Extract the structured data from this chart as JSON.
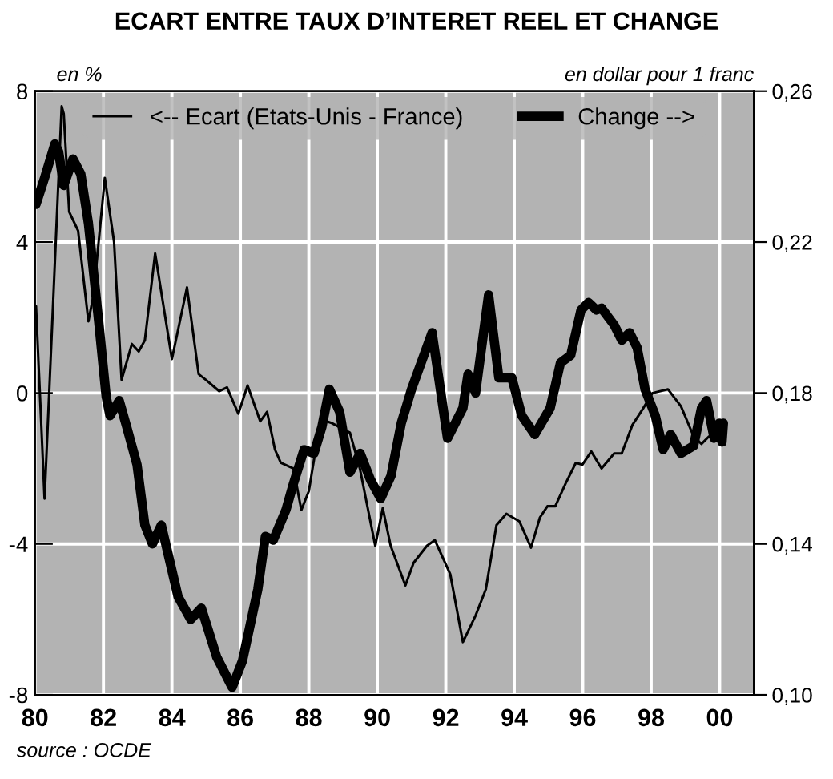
{
  "chart_data": {
    "type": "line",
    "title": "ECART ENTRE TAUX D’INTERET REEL ET CHANGE",
    "ylabel": "en %",
    "y2label": "en dollar pour 1 franc",
    "annotations": [
      "source : OCDE"
    ],
    "xlim": [
      1980,
      2001
    ],
    "xticks": [
      {
        "value": 1980,
        "label": "80"
      },
      {
        "value": 1982,
        "label": "82"
      },
      {
        "value": 1984,
        "label": "84"
      },
      {
        "value": 1986,
        "label": "86"
      },
      {
        "value": 1988,
        "label": "88"
      },
      {
        "value": 1990,
        "label": "90"
      },
      {
        "value": 1992,
        "label": "92"
      },
      {
        "value": 1994,
        "label": "94"
      },
      {
        "value": 1996,
        "label": "96"
      },
      {
        "value": 1998,
        "label": "98"
      },
      {
        "value": 2000,
        "label": "00"
      }
    ],
    "ylim": [
      -8,
      8
    ],
    "yticks": [
      -8,
      -4,
      0,
      4,
      8
    ],
    "y2lim": [
      0.1,
      0.26
    ],
    "y2ticks": [
      {
        "value": 0.1,
        "label": "0,10"
      },
      {
        "value": 0.14,
        "label": "0,14"
      },
      {
        "value": 0.18,
        "label": "0,18"
      },
      {
        "value": 0.22,
        "label": "0,22"
      },
      {
        "value": 0.26,
        "label": "0,26"
      }
    ],
    "grid": true,
    "legend": "top",
    "marker": "none",
    "line_style": "solid",
    "series": [
      {
        "name": "<-- Ecart (Etats-Unis - France)",
        "color": "#000000",
        "x": [
          1980.03,
          1980.28,
          1980.78,
          1980.84,
          1981.0,
          1981.26,
          1981.56,
          1981.71,
          1982.04,
          1982.31,
          1982.53,
          1982.83,
          1983.03,
          1983.21,
          1983.51,
          1984.0,
          1984.44,
          1984.78,
          1984.99,
          1985.38,
          1985.61,
          1985.94,
          1986.21,
          1986.58,
          1986.78,
          1987.01,
          1987.18,
          1987.55,
          1987.78,
          1988.0,
          1988.18,
          1988.36,
          1988.68,
          1989.2,
          1989.49,
          1989.94,
          1990.16,
          1990.39,
          1990.82,
          1991.06,
          1991.45,
          1991.68,
          1992.13,
          1992.5,
          1992.87,
          1993.17,
          1993.48,
          1993.77,
          1994.15,
          1994.49,
          1994.75,
          1994.97,
          1995.2,
          1995.5,
          1995.8,
          1995.99,
          1996.25,
          1996.55,
          1996.92,
          1997.14,
          1997.45,
          1997.75,
          1998.04,
          1998.49,
          1998.87,
          1999.24,
          1999.47,
          1999.69
        ],
        "values": [
          2.3,
          -2.8,
          7.6,
          7.4,
          4.8,
          4.3,
          1.9,
          2.6,
          5.7,
          4.0,
          0.35,
          1.3,
          1.1,
          1.4,
          3.7,
          0.9,
          2.8,
          0.5,
          0.35,
          0.05,
          0.15,
          -0.55,
          0.2,
          -0.75,
          -0.5,
          -1.5,
          -1.85,
          -2.0,
          -3.1,
          -2.6,
          -1.6,
          -0.7,
          -0.8,
          -1.05,
          -2.0,
          -4.05,
          -3.05,
          -4.05,
          -5.1,
          -4.5,
          -4.05,
          -3.9,
          -4.8,
          -6.6,
          -5.9,
          -5.2,
          -3.5,
          -3.2,
          -3.4,
          -4.1,
          -3.3,
          -3.0,
          -3.0,
          -2.4,
          -1.85,
          -1.9,
          -1.55,
          -2.0,
          -1.6,
          -1.6,
          -0.85,
          -0.43,
          0.0,
          0.1,
          -0.35,
          -1.15,
          -1.35,
          -1.15
        ]
      },
      {
        "name": "Change -->",
        "color": "#000000",
        "axis": "y2",
        "x": [
          1980.03,
          1980.28,
          1980.58,
          1980.69,
          1980.84,
          1981.11,
          1981.34,
          1981.56,
          1981.86,
          1982.08,
          1982.19,
          1982.46,
          1982.68,
          1982.98,
          1983.21,
          1983.43,
          1983.69,
          1984.18,
          1984.55,
          1984.86,
          1985.31,
          1985.76,
          1986.06,
          1986.51,
          1986.73,
          1986.96,
          1987.33,
          1987.55,
          1987.86,
          1988.15,
          1988.38,
          1988.6,
          1988.9,
          1989.2,
          1989.5,
          1989.8,
          1990.1,
          1990.4,
          1990.7,
          1991.0,
          1991.6,
          1992.05,
          1992.5,
          1992.65,
          1992.87,
          1993.25,
          1993.55,
          1993.93,
          1994.22,
          1994.6,
          1995.05,
          1995.35,
          1995.65,
          1995.95,
          1996.17,
          1996.4,
          1996.55,
          1996.92,
          1997.14,
          1997.37,
          1997.59,
          1997.82,
          1998.12,
          1998.35,
          1998.57,
          1998.87,
          1999.24,
          1999.47,
          1999.62,
          1999.84,
          1999.99,
          2000.07,
          2000.11
        ],
        "values": [
          0.23,
          0.237,
          0.246,
          0.244,
          0.235,
          0.242,
          0.238,
          0.225,
          0.199,
          0.179,
          0.174,
          0.178,
          0.171,
          0.161,
          0.145,
          0.14,
          0.145,
          0.126,
          0.12,
          0.123,
          0.11,
          0.102,
          0.109,
          0.128,
          0.142,
          0.141,
          0.149,
          0.156,
          0.165,
          0.164,
          0.171,
          0.181,
          0.175,
          0.159,
          0.164,
          0.157,
          0.152,
          0.158,
          0.172,
          0.181,
          0.196,
          0.168,
          0.176,
          0.185,
          0.18,
          0.206,
          0.184,
          0.184,
          0.174,
          0.169,
          0.176,
          0.188,
          0.19,
          0.202,
          0.204,
          0.202,
          0.2025,
          0.198,
          0.194,
          0.196,
          0.192,
          0.181,
          0.174,
          0.165,
          0.169,
          0.164,
          0.166,
          0.176,
          0.178,
          0.168,
          0.172,
          0.167,
          0.172
        ]
      }
    ]
  }
}
